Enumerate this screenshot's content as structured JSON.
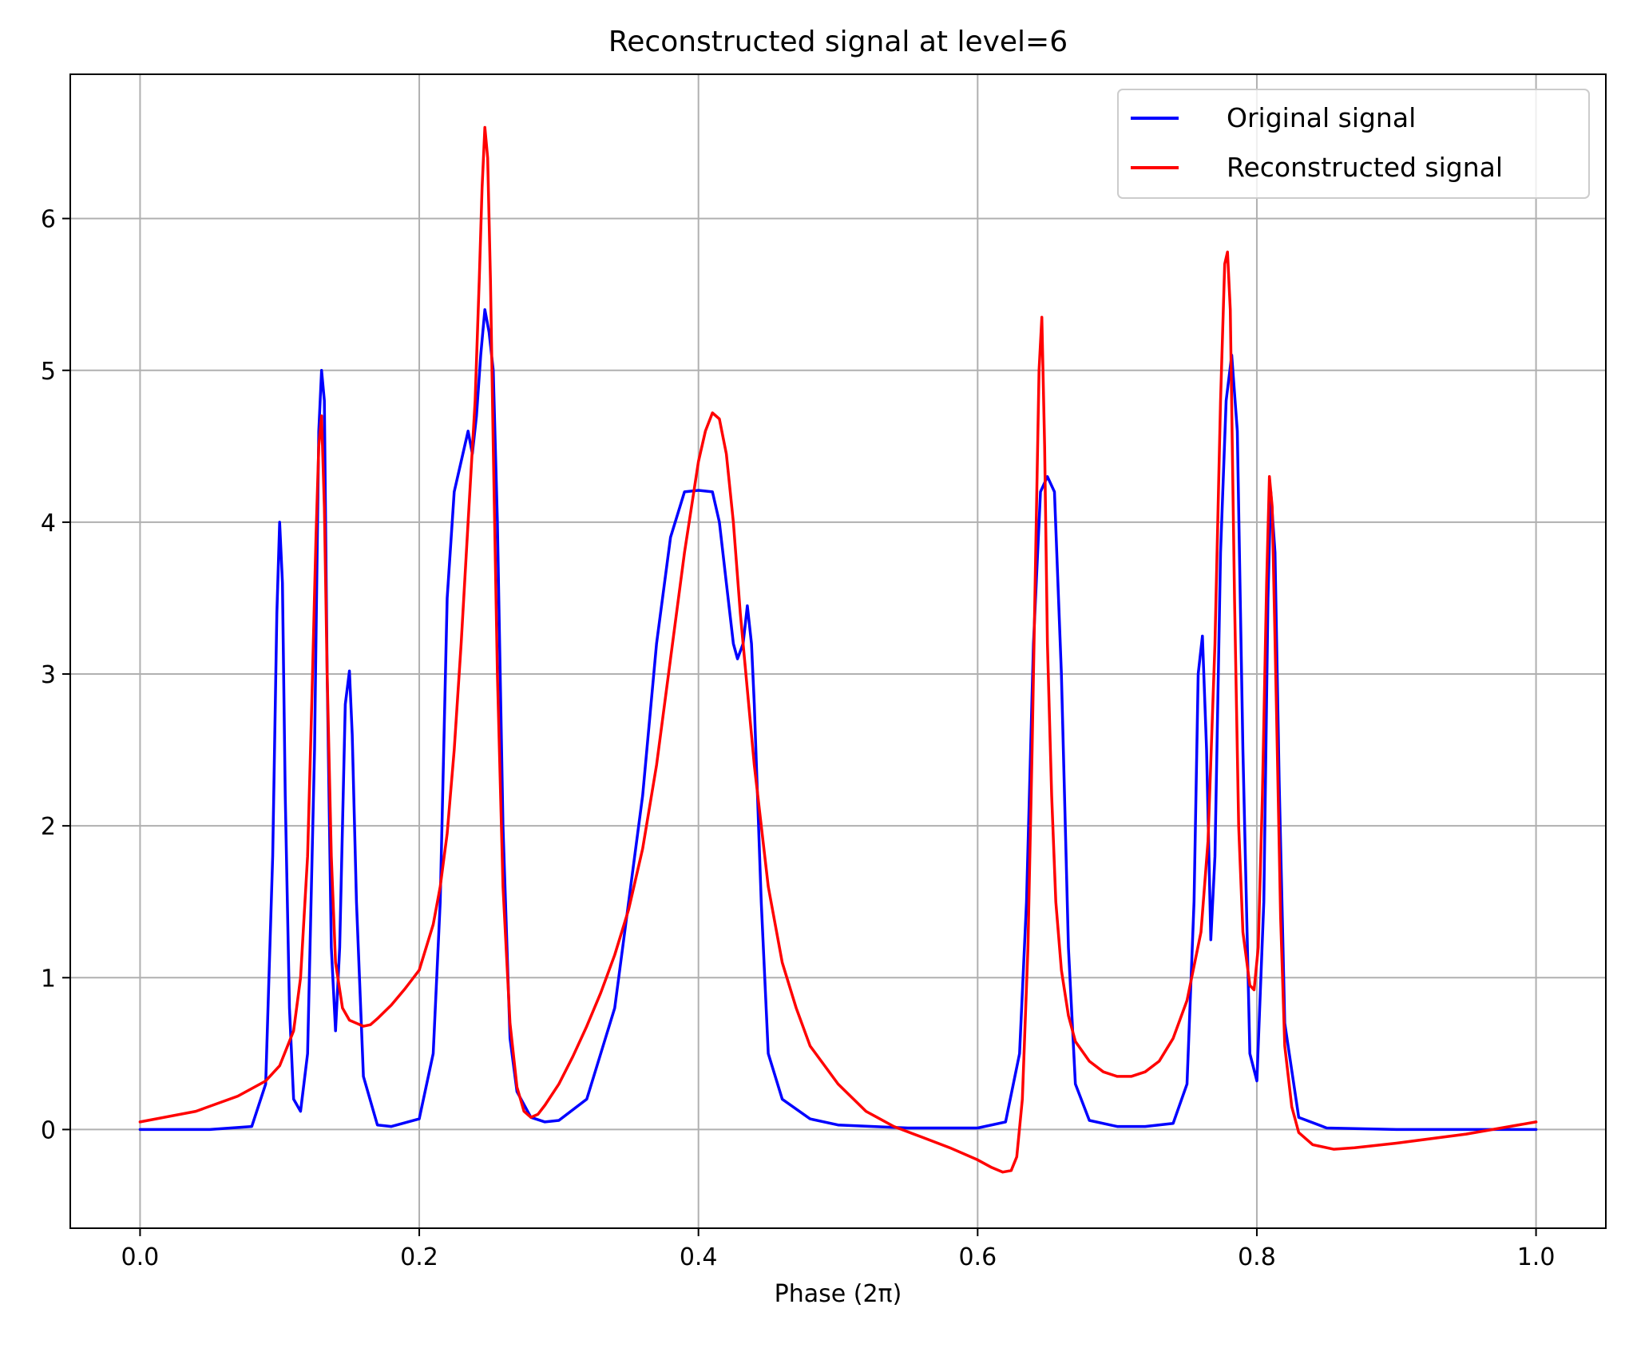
{
  "chart_data": {
    "type": "line",
    "title": "Reconstructed signal at level=6",
    "xlabel": "Phase (2π)",
    "ylabel": "",
    "xlim": [
      -0.05,
      1.05
    ],
    "ylim": [
      -0.65,
      6.95
    ],
    "xticks": [
      0.0,
      0.2,
      0.4,
      0.6,
      0.8,
      1.0
    ],
    "xtick_labels": [
      "0.0",
      "0.2",
      "0.4",
      "0.6",
      "0.8",
      "1.0"
    ],
    "yticks": [
      0,
      1,
      2,
      3,
      4,
      5,
      6
    ],
    "ytick_labels": [
      "0",
      "1",
      "2",
      "3",
      "4",
      "5",
      "6"
    ],
    "grid": true,
    "legend_position": "top-right",
    "series": [
      {
        "name": "Original signal",
        "color": "#0000ff",
        "x": [
          0.0,
          0.05,
          0.08,
          0.09,
          0.095,
          0.098,
          0.1,
          0.102,
          0.104,
          0.107,
          0.11,
          0.115,
          0.12,
          0.125,
          0.128,
          0.13,
          0.132,
          0.134,
          0.137,
          0.14,
          0.143,
          0.147,
          0.15,
          0.152,
          0.155,
          0.16,
          0.17,
          0.18,
          0.2,
          0.21,
          0.215,
          0.22,
          0.225,
          0.23,
          0.235,
          0.238,
          0.241,
          0.244,
          0.247,
          0.25,
          0.253,
          0.256,
          0.26,
          0.265,
          0.27,
          0.28,
          0.29,
          0.3,
          0.32,
          0.34,
          0.36,
          0.37,
          0.38,
          0.39,
          0.4,
          0.41,
          0.415,
          0.42,
          0.425,
          0.428,
          0.432,
          0.435,
          0.438,
          0.44,
          0.445,
          0.45,
          0.46,
          0.48,
          0.5,
          0.55,
          0.6,
          0.62,
          0.63,
          0.635,
          0.64,
          0.645,
          0.65,
          0.655,
          0.66,
          0.665,
          0.67,
          0.68,
          0.7,
          0.72,
          0.74,
          0.75,
          0.755,
          0.758,
          0.761,
          0.764,
          0.767,
          0.77,
          0.774,
          0.778,
          0.782,
          0.786,
          0.79,
          0.795,
          0.8,
          0.805,
          0.808,
          0.81,
          0.813,
          0.816,
          0.82,
          0.83,
          0.85,
          0.9,
          1.0
        ],
        "y": [
          0.0,
          0.0,
          0.02,
          0.3,
          1.8,
          3.4,
          4.0,
          3.6,
          2.2,
          0.8,
          0.2,
          0.12,
          0.5,
          2.5,
          4.6,
          5.0,
          4.8,
          3.0,
          1.2,
          0.65,
          1.2,
          2.8,
          3.02,
          2.6,
          1.5,
          0.35,
          0.03,
          0.02,
          0.07,
          0.5,
          1.5,
          3.5,
          4.2,
          4.4,
          4.6,
          4.45,
          4.7,
          5.1,
          5.4,
          5.25,
          5.0,
          4.0,
          2.0,
          0.6,
          0.25,
          0.08,
          0.05,
          0.06,
          0.2,
          0.8,
          2.2,
          3.2,
          3.9,
          4.2,
          4.21,
          4.2,
          4.0,
          3.6,
          3.2,
          3.1,
          3.2,
          3.45,
          3.2,
          2.8,
          1.5,
          0.5,
          0.2,
          0.07,
          0.03,
          0.01,
          0.01,
          0.05,
          0.5,
          1.5,
          3.2,
          4.2,
          4.3,
          4.2,
          3.0,
          1.2,
          0.3,
          0.06,
          0.02,
          0.02,
          0.04,
          0.3,
          1.5,
          3.0,
          3.25,
          2.5,
          1.25,
          1.8,
          3.8,
          4.8,
          5.1,
          4.6,
          2.5,
          0.5,
          0.32,
          1.5,
          3.5,
          4.2,
          3.8,
          2.3,
          0.7,
          0.08,
          0.01,
          0.0,
          0.0
        ]
      },
      {
        "name": "Reconstructed signal",
        "color": "#ff0000",
        "x": [
          0.0,
          0.04,
          0.07,
          0.09,
          0.1,
          0.11,
          0.115,
          0.12,
          0.123,
          0.126,
          0.128,
          0.13,
          0.132,
          0.134,
          0.137,
          0.14,
          0.145,
          0.15,
          0.155,
          0.16,
          0.165,
          0.17,
          0.18,
          0.19,
          0.2,
          0.21,
          0.215,
          0.22,
          0.225,
          0.23,
          0.235,
          0.24,
          0.243,
          0.245,
          0.247,
          0.249,
          0.251,
          0.253,
          0.256,
          0.26,
          0.265,
          0.27,
          0.275,
          0.28,
          0.285,
          0.29,
          0.3,
          0.31,
          0.32,
          0.33,
          0.34,
          0.35,
          0.36,
          0.37,
          0.38,
          0.39,
          0.4,
          0.405,
          0.41,
          0.415,
          0.42,
          0.425,
          0.43,
          0.44,
          0.45,
          0.46,
          0.47,
          0.48,
          0.5,
          0.52,
          0.54,
          0.56,
          0.58,
          0.6,
          0.61,
          0.618,
          0.624,
          0.628,
          0.632,
          0.636,
          0.639,
          0.642,
          0.644,
          0.646,
          0.648,
          0.65,
          0.653,
          0.656,
          0.66,
          0.665,
          0.67,
          0.68,
          0.69,
          0.7,
          0.71,
          0.72,
          0.73,
          0.74,
          0.75,
          0.76,
          0.765,
          0.77,
          0.774,
          0.777,
          0.779,
          0.781,
          0.784,
          0.787,
          0.79,
          0.795,
          0.798,
          0.801,
          0.804,
          0.807,
          0.809,
          0.811,
          0.814,
          0.817,
          0.82,
          0.825,
          0.83,
          0.84,
          0.855,
          0.87,
          0.9,
          0.95,
          1.0
        ],
        "y": [
          0.05,
          0.12,
          0.22,
          0.32,
          0.42,
          0.65,
          1.0,
          1.8,
          2.8,
          3.9,
          4.5,
          4.7,
          4.1,
          3.0,
          1.8,
          1.1,
          0.8,
          0.72,
          0.7,
          0.68,
          0.69,
          0.73,
          0.82,
          0.93,
          1.05,
          1.35,
          1.6,
          1.95,
          2.5,
          3.2,
          4.0,
          4.8,
          5.6,
          6.2,
          6.6,
          6.4,
          5.6,
          4.5,
          3.0,
          1.6,
          0.7,
          0.28,
          0.12,
          0.08,
          0.1,
          0.16,
          0.3,
          0.48,
          0.68,
          0.9,
          1.15,
          1.45,
          1.85,
          2.4,
          3.1,
          3.8,
          4.4,
          4.6,
          4.72,
          4.68,
          4.45,
          4.0,
          3.4,
          2.4,
          1.6,
          1.1,
          0.8,
          0.55,
          0.3,
          0.12,
          0.02,
          -0.05,
          -0.12,
          -0.2,
          -0.25,
          -0.28,
          -0.27,
          -0.18,
          0.2,
          1.2,
          2.5,
          4.0,
          5.0,
          5.35,
          4.5,
          3.2,
          2.2,
          1.5,
          1.05,
          0.75,
          0.58,
          0.45,
          0.38,
          0.35,
          0.35,
          0.38,
          0.45,
          0.6,
          0.85,
          1.3,
          1.9,
          3.2,
          4.8,
          5.7,
          5.78,
          5.4,
          3.5,
          2.0,
          1.3,
          0.95,
          0.92,
          1.2,
          2.2,
          3.6,
          4.3,
          4.1,
          2.8,
          1.4,
          0.55,
          0.15,
          -0.02,
          -0.1,
          -0.13,
          -0.12,
          -0.09,
          -0.03,
          0.05
        ]
      }
    ]
  }
}
